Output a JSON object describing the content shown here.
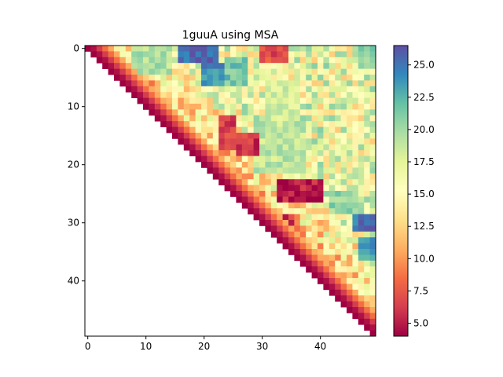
{
  "chart_data": {
    "type": "heatmap",
    "title": "1guuA  using MSA",
    "xlabel": "",
    "ylabel": "",
    "n": 50,
    "matrix_shape": "upper-triangle (j >= i)",
    "x_ticks": [
      0,
      10,
      20,
      30,
      40
    ],
    "y_ticks": [
      0,
      10,
      20,
      30,
      40
    ],
    "x_tick_labels": [
      "0",
      "10",
      "20",
      "30",
      "40"
    ],
    "y_tick_labels": [
      "0",
      "10",
      "20",
      "30",
      "40"
    ],
    "colormap": "Spectral",
    "color_range": [
      4.0,
      26.5
    ],
    "colorbar_ticks": [
      5.0,
      7.5,
      10.0,
      12.5,
      15.0,
      17.5,
      20.0,
      22.5,
      25.0
    ],
    "colorbar_tick_labels": [
      "5.0",
      "7.5",
      "10.0",
      "12.5",
      "15.0",
      "17.5",
      "20.0",
      "22.5",
      "25.0"
    ],
    "hotspots": [
      {
        "rows": [
          0,
          2
        ],
        "cols": [
          16,
          22
        ],
        "value": 25.5
      },
      {
        "rows": [
          3,
          6
        ],
        "cols": [
          20,
          24
        ],
        "value": 24.0
      },
      {
        "rows": [
          0,
          4
        ],
        "cols": [
          8,
          14
        ],
        "value": 19.5
      },
      {
        "rows": [
          2,
          6
        ],
        "cols": [
          24,
          27
        ],
        "value": 21.5
      },
      {
        "rows": [
          29,
          31
        ],
        "cols": [
          46,
          49
        ],
        "value": 25.0
      },
      {
        "rows": [
          33,
          36
        ],
        "cols": [
          47,
          49
        ],
        "value": 23.5
      },
      {
        "rows": [
          25,
          28
        ],
        "cols": [
          42,
          46
        ],
        "value": 20.5
      },
      {
        "rows": [
          13,
          21
        ],
        "cols": [
          29,
          37
        ],
        "value": 19.0
      },
      {
        "rows": [
          6,
          12
        ],
        "cols": [
          31,
          36
        ],
        "value": 18.0
      },
      {
        "rows": [
          0,
          3
        ],
        "cols": [
          47,
          49
        ],
        "value": 21.0
      },
      {
        "rows": [
          23,
          26
        ],
        "cols": [
          33,
          40
        ],
        "value": 5.0
      },
      {
        "rows": [
          15,
          18
        ],
        "cols": [
          26,
          29
        ],
        "value": 6.0
      },
      {
        "rows": [
          12,
          17
        ],
        "cols": [
          23,
          25
        ],
        "value": 6.5
      },
      {
        "rows": [
          0,
          2
        ],
        "cols": [
          30,
          34
        ],
        "value": 7.0
      },
      {
        "rows": [
          29,
          31
        ],
        "cols": [
          33,
          35
        ],
        "value": 6.0
      }
    ]
  }
}
